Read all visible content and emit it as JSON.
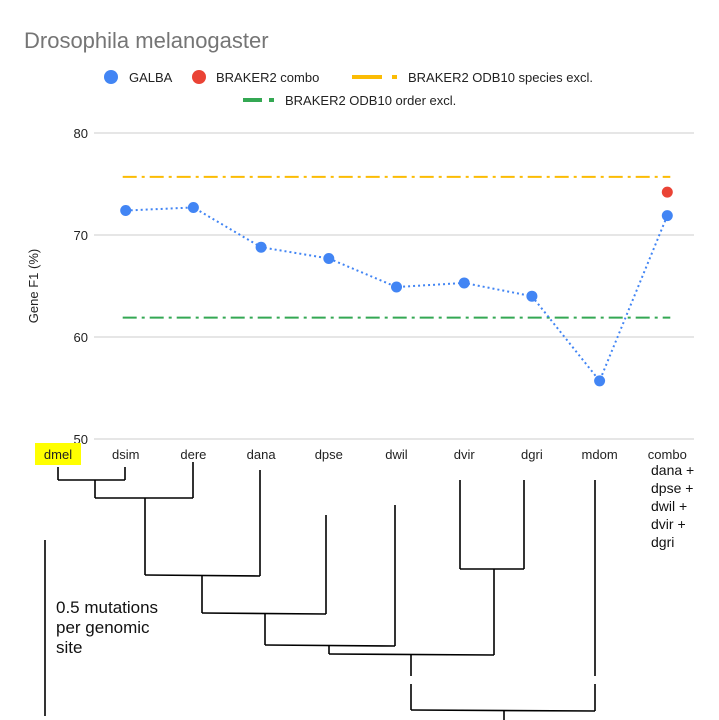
{
  "chart_data": {
    "type": "line",
    "title": "Drosophila melanogaster",
    "xlabel": "",
    "ylabel": "Gene F1 (%)",
    "ylim": [
      50,
      80
    ],
    "yticks": [
      50,
      60,
      70,
      80
    ],
    "grid": true,
    "legend_position": "top",
    "categories": [
      "dmel",
      "dsim",
      "dere",
      "dana",
      "dpse",
      "dwil",
      "dvir",
      "dgri",
      "mdom",
      "combo"
    ],
    "highlighted_category": "dmel",
    "combo_annotation": [
      "dana +",
      "dpse +",
      "dwil +",
      "dvir +",
      "dgri"
    ],
    "series": [
      {
        "name": "GALBA",
        "kind": "points-dotted-line",
        "color": "#4285f4",
        "x": [
          "dsim",
          "dere",
          "dana",
          "dpse",
          "dwil",
          "dvir",
          "dgri",
          "mdom",
          "combo"
        ],
        "values": [
          72.4,
          72.7,
          68.8,
          67.7,
          64.9,
          65.3,
          64.0,
          55.7,
          71.9
        ]
      },
      {
        "name": "BRAKER2 combo",
        "kind": "point",
        "color": "#ea4335",
        "x": [
          "combo"
        ],
        "values": [
          74.2
        ]
      },
      {
        "name": "BRAKER2 ODB10 species excl.",
        "kind": "reference-line",
        "color": "#fbbc04",
        "value": 75.7
      },
      {
        "name": "BRAKER2 ODB10 order excl.",
        "kind": "reference-line",
        "color": "#34a853",
        "value": 61.9
      }
    ]
  },
  "phylogeny": {
    "scale_label": [
      "0.5 mutations",
      "per genomic",
      "site"
    ]
  }
}
